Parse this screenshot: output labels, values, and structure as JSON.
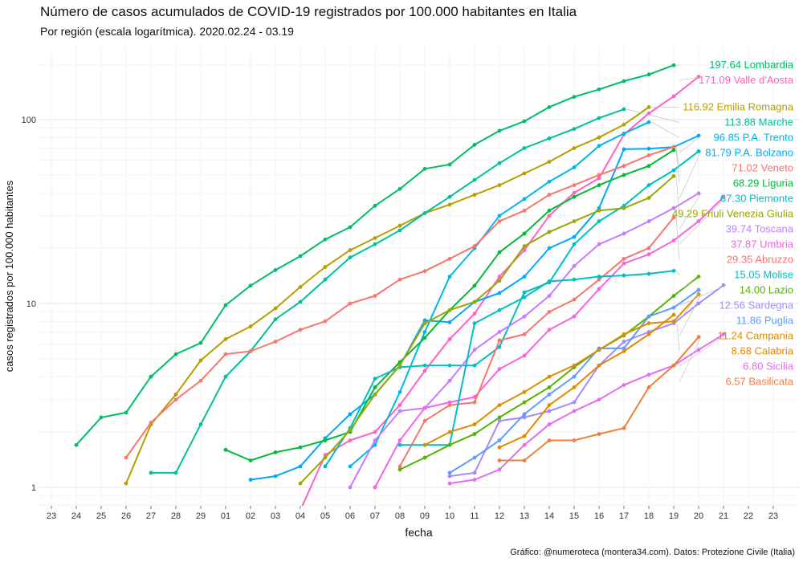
{
  "chart_data": {
    "type": "line",
    "title": "Número de casos acumulados de COVID-19 registrados por 100.000 habitantes en Italia",
    "subtitle": "Por región (escala logarítmica). 2020.02.24 - 03.19",
    "xlabel": "fecha",
    "ylabel": "casos registrados por 100.000 habitantes",
    "caption": "Gráfico: @numeroteca (montera34.com). Datos: Protezione Civile (Italia)",
    "y_scale": "log",
    "grid": true,
    "x_ticks": [
      "23",
      "24",
      "25",
      "26",
      "27",
      "28",
      "29",
      "01",
      "02",
      "03",
      "04",
      "05",
      "06",
      "07",
      "08",
      "09",
      "10",
      "11",
      "12",
      "13",
      "14",
      "15",
      "16",
      "17",
      "18",
      "19",
      "20",
      "21",
      "22",
      "23"
    ],
    "y_ticks": [
      "1",
      "10",
      "100"
    ],
    "series": [
      {
        "name": "Lombardia",
        "label": "197.64 Lombardia",
        "color": "#00BE67",
        "start": 1,
        "values": [
          1.7,
          2.4,
          2.55,
          4.0,
          5.3,
          6.1,
          9.8,
          12.5,
          15.2,
          18.1,
          22.3,
          26.0,
          34.0,
          42.0,
          54.0,
          57.0,
          73.0,
          87.0,
          98.0,
          117.0,
          133.0,
          146.0,
          162.0,
          176.0,
          197.64
        ]
      },
      {
        "name": "Valle d'Aosta",
        "label": "171.09 Valle d'Aosta",
        "color": "#FF61C3",
        "start": 1,
        "values": [
          0.75,
          0.75,
          0.75,
          0.75,
          0.75,
          0.75,
          0.75,
          0.75,
          0.75,
          0.75,
          1.5,
          1.8,
          2.0,
          2.8,
          4.3,
          6.4,
          8.8,
          14.0,
          19.5,
          30.0,
          40.0,
          48.0,
          83.0,
          108.0,
          134.0,
          171.09
        ]
      },
      {
        "name": "Emilia Romagna",
        "label": "116.92 Emilia Romagna",
        "color": "#B79F00",
        "start": 3,
        "values": [
          1.05,
          2.2,
          3.2,
          4.9,
          6.4,
          7.5,
          9.4,
          12.3,
          15.8,
          19.5,
          22.7,
          26.5,
          31.0,
          34.5,
          39.0,
          44.0,
          51.0,
          59.0,
          70.0,
          80.0,
          94.0,
          116.92
        ]
      },
      {
        "name": "Marche",
        "label": "113.88 Marche",
        "color": "#00C19A",
        "start": 4,
        "values": [
          1.2,
          1.2,
          2.2,
          4.0,
          5.5,
          8.2,
          10.2,
          13.5,
          17.8,
          21.0,
          25.0,
          31.0,
          38.0,
          47.0,
          58.0,
          70.0,
          79.0,
          89.0,
          102.0,
          113.88
        ]
      },
      {
        "name": "P.A. Trento",
        "label": "96.85 P.A. Trento",
        "color": "#00B8E7",
        "start": 12,
        "values": [
          1.3,
          1.7,
          3.3,
          7.0,
          14.0,
          20.0,
          30.0,
          37.0,
          46.0,
          55.0,
          72.0,
          84.0,
          96.85
        ]
      },
      {
        "name": "P.A. Bolzano",
        "label": "81.79 P.A. Bolzano",
        "color": "#00A9FF",
        "start": 8,
        "values": [
          1.1,
          1.15,
          1.3,
          1.85,
          2.5,
          3.2,
          4.6,
          8.1,
          7.9,
          10.2,
          11.4,
          14.0,
          20.0,
          23.0,
          33.0,
          69.0,
          69.5,
          71.0,
          81.79
        ]
      },
      {
        "name": "Veneto",
        "label": "71.02 Veneto",
        "color": "#F8766D",
        "start": 3,
        "values": [
          1.45,
          2.25,
          3.0,
          3.8,
          5.3,
          5.5,
          6.2,
          7.2,
          8.0,
          10.0,
          11.0,
          13.5,
          15.0,
          17.5,
          20.5,
          28.0,
          32.0,
          39.0,
          44.0,
          50.0,
          56.0,
          64.0,
          71.02
        ]
      },
      {
        "name": "Liguria",
        "label": "68.29 Liguria",
        "color": "#00BA38",
        "start": 7,
        "values": [
          1.6,
          1.4,
          1.55,
          1.65,
          1.8,
          2.0,
          3.5,
          4.8,
          6.5,
          9.2,
          12.5,
          19.0,
          24.0,
          32.0,
          38.0,
          44.0,
          50.0,
          56.0,
          68.29
        ]
      },
      {
        "name": "Piemonte",
        "label": "67.30 Piemonte",
        "color": "#00BFC4",
        "start": 11,
        "values": [
          1.3,
          2.1,
          3.9,
          4.5,
          4.6,
          4.6,
          4.6,
          5.8,
          11.5,
          13.0,
          21.0,
          28.0,
          34.0,
          44.0,
          53.0,
          67.3
        ]
      },
      {
        "name": "Friuli Venezia Giulia",
        "label": "49.29 Friuli Venezia Giulia",
        "color": "#9CA700",
        "start": 10,
        "values": [
          1.05,
          1.45,
          2.05,
          3.2,
          4.6,
          7.8,
          9.2,
          10.2,
          13.3,
          20.5,
          24.5,
          28.0,
          32.0,
          33.0,
          37.5,
          49.29
        ]
      },
      {
        "name": "Toscana",
        "label": "39.74 Toscana",
        "color": "#C77CFF",
        "start": 12,
        "values": [
          1.0,
          1.8,
          2.6,
          2.7,
          3.8,
          5.6,
          7.0,
          8.5,
          11.0,
          16.0,
          21.0,
          24.0,
          28.0,
          33.0,
          39.74
        ]
      },
      {
        "name": "Umbria",
        "label": "37.87 Umbria",
        "color": "#F564E3",
        "start": 13,
        "values": [
          1.0,
          1.8,
          2.7,
          2.9,
          3.1,
          4.4,
          5.2,
          7.2,
          8.5,
          12.0,
          16.5,
          18.5,
          22.0,
          28.0,
          37.87
        ]
      },
      {
        "name": "Abruzzo",
        "label": "29.35 Abruzzo",
        "color": "#F8766D",
        "start": 14,
        "values": [
          1.3,
          2.3,
          2.8,
          2.9,
          6.3,
          6.8,
          9.0,
          10.5,
          13.5,
          17.5,
          20.0,
          29.35
        ]
      },
      {
        "name": "Molise",
        "label": "15.05 Molise",
        "color": "#00BFC4",
        "start": 14,
        "values": [
          1.7,
          1.7,
          1.7,
          7.8,
          9.2,
          10.8,
          13.2,
          13.5,
          14.0,
          14.2,
          14.5,
          15.05
        ]
      },
      {
        "name": "Lazio",
        "label": "14.00 Lazio",
        "color": "#53B400",
        "start": 14,
        "values": [
          1.25,
          1.45,
          1.7,
          1.95,
          2.4,
          2.9,
          3.5,
          4.5,
          5.6,
          6.7,
          8.5,
          11.0,
          14.0
        ]
      },
      {
        "name": "Sardegna",
        "label": "12.56 Sardegna",
        "color": "#A58AFF",
        "start": 16,
        "values": [
          1.15,
          1.2,
          2.3,
          2.4,
          2.6,
          2.9,
          4.6,
          6.2,
          7.0,
          7.8,
          10.0,
          12.56
        ]
      },
      {
        "name": "Puglia",
        "label": "11.86 Puglia",
        "color": "#619CFF",
        "start": 16,
        "values": [
          1.2,
          1.45,
          1.8,
          2.5,
          3.2,
          4.0,
          5.7,
          5.7,
          8.5,
          9.5,
          11.86
        ]
      },
      {
        "name": "Campania",
        "label": "11.24 Campania",
        "color": "#DB8E00",
        "start": 15,
        "values": [
          1.7,
          2.0,
          2.2,
          2.8,
          3.3,
          4.0,
          4.6,
          5.6,
          6.8,
          7.8,
          8.0,
          11.24
        ]
      },
      {
        "name": "Calabria",
        "label": "8.68 Calabria",
        "color": "#E58700",
        "start": 18,
        "values": [
          1.65,
          1.9,
          2.8,
          3.5,
          4.6,
          5.5,
          6.8,
          8.68
        ]
      },
      {
        "name": "Sicilia",
        "label": "6.80 Sicilia",
        "color": "#E76BF3",
        "start": 16,
        "values": [
          1.05,
          1.1,
          1.25,
          1.7,
          2.2,
          2.6,
          3.0,
          3.6,
          4.1,
          4.6,
          5.6,
          6.8
        ]
      },
      {
        "name": "Basilicata",
        "label": "6.57 Basilicata",
        "color": "#EF7F3B",
        "start": 18,
        "values": [
          1.4,
          1.4,
          1.8,
          1.8,
          1.95,
          2.1,
          3.5,
          4.6,
          6.57
        ]
      }
    ]
  }
}
